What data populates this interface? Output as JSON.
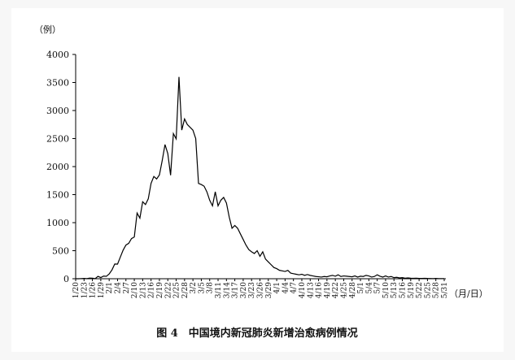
{
  "chart_data": {
    "type": "line",
    "title": "图 4　中国境内新冠肺炎新增治愈病例情况",
    "ylabel": "（例）",
    "xlabel": "（月/日）",
    "categories": [
      "1/20",
      null,
      null,
      "1/23",
      null,
      null,
      "1/26",
      null,
      null,
      "1/29",
      null,
      null,
      "2/1",
      null,
      null,
      "2/4",
      null,
      null,
      "2/7",
      null,
      null,
      "2/10",
      null,
      null,
      "2/13",
      null,
      null,
      "2/16",
      null,
      null,
      "2/19",
      null,
      null,
      "2/22",
      null,
      null,
      "2/25",
      null,
      null,
      "2/28",
      null,
      null,
      "3/2",
      null,
      null,
      "3/5",
      null,
      null,
      "3/8",
      null,
      null,
      "3/11",
      null,
      null,
      "3/14",
      null,
      null,
      "3/17",
      null,
      null,
      "3/20",
      null,
      null,
      "3/23",
      null,
      null,
      "3/26",
      null,
      null,
      "3/29",
      null,
      null,
      "4/1",
      null,
      null,
      "4/4",
      null,
      null,
      "4/7",
      null,
      null,
      "4/10",
      null,
      null,
      "4/13",
      null,
      null,
      "4/16",
      null,
      null,
      "4/19",
      null,
      null,
      "4/22",
      null,
      null,
      "4/25",
      null,
      null,
      "4/28",
      null,
      null,
      "5/1",
      null,
      null,
      "5/4",
      null,
      null,
      "5/7",
      null,
      null,
      "5/10",
      null,
      null,
      "5/13",
      null,
      null,
      "5/16",
      null,
      null,
      "5/19",
      null,
      null,
      "5/22",
      null,
      null,
      "5/25",
      null,
      null,
      "5/28",
      null,
      null,
      "5/31"
    ],
    "values": [
      0,
      0,
      3,
      6,
      3,
      11,
      9,
      2,
      43,
      21,
      47,
      43,
      85,
      157,
      262,
      261,
      387,
      510,
      600,
      632,
      716,
      744,
      1171,
      1081,
      1373,
      1323,
      1425,
      1701,
      1824,
      1779,
      1852,
      2109,
      2393,
      2231,
      1846,
      2589,
      2494,
      3600,
      2650,
      2850,
      2750,
      2700,
      2650,
      2500,
      1700,
      1680,
      1650,
      1550,
      1400,
      1300,
      1550,
      1300,
      1400,
      1450,
      1350,
      1100,
      900,
      950,
      900,
      800,
      700,
      600,
      520,
      480,
      450,
      500,
      400,
      480,
      350,
      300,
      250,
      200,
      180,
      150,
      140,
      130,
      150,
      100,
      90,
      80,
      70,
      80,
      60,
      75,
      60,
      50,
      40,
      35,
      30,
      40,
      35,
      50,
      60,
      45,
      70,
      40,
      50,
      45,
      40,
      35,
      50,
      30,
      45,
      40,
      60,
      50,
      30,
      40,
      70,
      45,
      30,
      50,
      30,
      40,
      20,
      25,
      15,
      20,
      10,
      15,
      10,
      8,
      10,
      5,
      6,
      8,
      5,
      4,
      3,
      5,
      2,
      3,
      2
    ],
    "color": "#000000",
    "ylim": [
      0,
      4000
    ],
    "yticks": [
      0,
      500,
      1000,
      1500,
      2000,
      2500,
      3000,
      3500,
      4000
    ],
    "grid": false
  }
}
